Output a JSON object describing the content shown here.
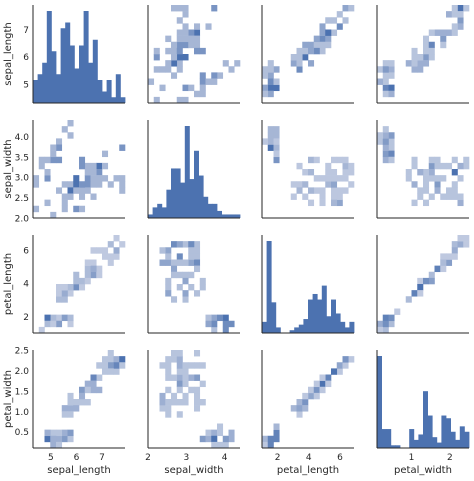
{
  "chart_data": {
    "type": "pairgrid",
    "variables": [
      "sepal_length",
      "sepal_width",
      "petal_length",
      "petal_width"
    ],
    "diag_kind": "histogram",
    "offdiag_kind": "2d-histogram",
    "color": "#4c72b0",
    "grid": false,
    "ranges": {
      "sepal_length": [
        4.3,
        7.9
      ],
      "sepal_width": [
        2.0,
        4.4
      ],
      "petal_length": [
        1.0,
        6.9
      ],
      "petal_width": [
        0.1,
        2.5
      ]
    },
    "ticks": {
      "sepal_length": [
        5,
        6,
        7
      ],
      "sepal_width": [
        2.0,
        2.5,
        3.0,
        3.5,
        4.0
      ],
      "petal_length": [
        2,
        4,
        6
      ],
      "petal_width": [
        0.5,
        1.0,
        1.5,
        2.0,
        2.5
      ]
    },
    "x_tick_labels": {
      "sepal_length": [
        "5",
        "6",
        "7"
      ],
      "sepal_width": [
        "2",
        "3",
        "4"
      ],
      "petal_length": [
        "2",
        "4",
        "6"
      ],
      "petal_width": [
        "1",
        "2"
      ]
    },
    "x_tick_values": {
      "sepal_length": [
        5,
        6,
        7
      ],
      "sepal_width": [
        2,
        3,
        4
      ],
      "petal_length": [
        2,
        4,
        6
      ],
      "petal_width": [
        1,
        2
      ]
    },
    "y_tick_labels": {
      "sepal_length": [
        "5",
        "6",
        "7"
      ],
      "sepal_width": [
        "2.0",
        "2.5",
        "3.0",
        "3.5",
        "4.0"
      ],
      "petal_length": [
        "2",
        "4",
        "6"
      ],
      "petal_width": [
        "0.5",
        "1.0",
        "1.5",
        "2.0",
        "2.5"
      ]
    },
    "diagonal_histograms": {
      "sepal_length": [
        4,
        5,
        7,
        16,
        9,
        5,
        13,
        14,
        10,
        6,
        10,
        16,
        7,
        11,
        4,
        2,
        4,
        1,
        5,
        1
      ],
      "sepal_width": [
        1,
        3,
        4,
        3,
        8,
        14,
        14,
        10,
        26,
        11,
        19,
        12,
        6,
        4,
        4,
        2,
        1,
        1,
        1,
        1
      ],
      "petal_length": [
        4,
        33,
        11,
        2,
        0,
        0,
        1,
        2,
        3,
        5,
        12,
        14,
        12,
        17,
        6,
        12,
        7,
        4,
        2,
        4
      ],
      "petal_width": [
        34,
        7,
        7,
        1,
        1,
        0,
        0,
        7,
        3,
        5,
        21,
        12,
        4,
        2,
        12,
        11,
        6,
        3,
        8,
        6
      ]
    },
    "density_samples": {
      "sepal_length__sepal_width": [
        [
          5.1,
          3.5
        ],
        [
          4.9,
          3.0
        ],
        [
          4.7,
          3.2
        ],
        [
          5.0,
          3.6
        ],
        [
          5.4,
          3.9
        ],
        [
          4.6,
          3.4
        ],
        [
          5.0,
          3.4
        ],
        [
          4.4,
          2.9
        ],
        [
          4.9,
          3.1
        ],
        [
          5.4,
          3.7
        ],
        [
          4.8,
          3.4
        ],
        [
          4.8,
          3.0
        ],
        [
          4.3,
          3.0
        ],
        [
          5.8,
          4.0
        ],
        [
          5.7,
          4.4
        ],
        [
          5.1,
          3.8
        ],
        [
          5.2,
          3.5
        ],
        [
          5.2,
          3.4
        ],
        [
          5.5,
          4.2
        ],
        [
          4.5,
          2.3
        ],
        [
          5.3,
          3.7
        ],
        [
          7.0,
          3.2
        ],
        [
          6.4,
          3.2
        ],
        [
          6.9,
          3.1
        ],
        [
          5.5,
          2.3
        ],
        [
          6.5,
          2.8
        ],
        [
          5.7,
          2.8
        ],
        [
          6.3,
          3.3
        ],
        [
          4.9,
          2.4
        ],
        [
          6.6,
          2.9
        ],
        [
          5.2,
          2.7
        ],
        [
          5.0,
          2.0
        ],
        [
          5.9,
          3.0
        ],
        [
          6.0,
          2.2
        ],
        [
          6.1,
          2.9
        ],
        [
          5.6,
          2.9
        ],
        [
          6.7,
          3.1
        ],
        [
          5.8,
          2.7
        ],
        [
          6.2,
          2.2
        ],
        [
          5.6,
          2.5
        ],
        [
          6.3,
          2.5
        ],
        [
          6.1,
          2.8
        ],
        [
          6.8,
          2.8
        ],
        [
          6.0,
          2.9
        ],
        [
          5.5,
          2.4
        ],
        [
          6.3,
          3.3
        ],
        [
          5.8,
          2.7
        ],
        [
          7.1,
          3.0
        ],
        [
          6.5,
          3.0
        ],
        [
          7.6,
          3.0
        ],
        [
          7.3,
          2.9
        ],
        [
          6.7,
          2.5
        ],
        [
          7.2,
          3.6
        ],
        [
          6.4,
          2.7
        ],
        [
          6.8,
          3.0
        ],
        [
          5.7,
          2.5
        ],
        [
          7.7,
          3.8
        ],
        [
          7.7,
          2.6
        ],
        [
          6.0,
          2.2
        ],
        [
          6.9,
          3.2
        ],
        [
          7.7,
          2.8
        ],
        [
          6.3,
          2.7
        ],
        [
          6.7,
          3.3
        ],
        [
          7.2,
          3.2
        ],
        [
          6.2,
          2.8
        ],
        [
          6.1,
          3.0
        ],
        [
          7.9,
          3.8
        ],
        [
          6.4,
          2.8
        ],
        [
          6.3,
          2.8
        ],
        [
          6.1,
          2.6
        ],
        [
          7.7,
          3.0
        ],
        [
          6.3,
          3.4
        ],
        [
          6.4,
          3.1
        ],
        [
          6.9,
          3.1
        ],
        [
          5.8,
          2.7
        ],
        [
          6.8,
          3.2
        ],
        [
          6.7,
          3.0
        ],
        [
          6.5,
          3.0
        ],
        [
          6.2,
          3.4
        ],
        [
          5.9,
          3.0
        ]
      ]
    }
  }
}
